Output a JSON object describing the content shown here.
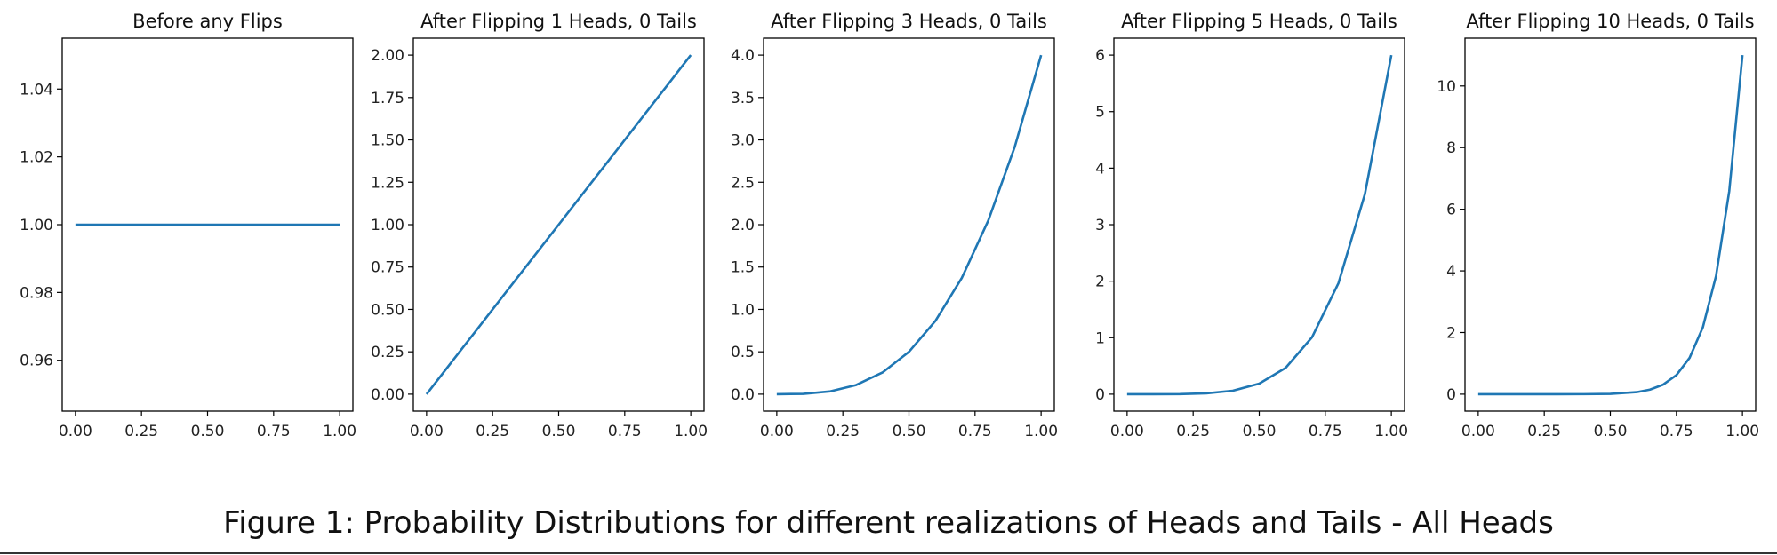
{
  "chart_data": [
    {
      "type": "line",
      "title": "Before any Flips",
      "heads": 0,
      "tails": 0,
      "xlim": [
        -0.05,
        1.05
      ],
      "ylim": [
        0.945,
        1.055
      ],
      "xticks": [
        0,
        0.25,
        0.5,
        0.75,
        1
      ],
      "xtick_labels": [
        "0.00",
        "0.25",
        "0.50",
        "0.75",
        "1.00"
      ],
      "yticks": [
        0.96,
        0.98,
        1.0,
        1.02,
        1.04
      ],
      "ytick_labels": [
        "0.96",
        "0.98",
        "1.00",
        "1.02",
        "1.04"
      ],
      "series_color": "#1f77b4",
      "x": [
        0,
        0.1,
        0.2,
        0.3,
        0.4,
        0.5,
        0.6,
        0.7,
        0.8,
        0.9,
        1.0
      ],
      "y": [
        1,
        1,
        1,
        1,
        1,
        1,
        1,
        1,
        1,
        1,
        1
      ]
    },
    {
      "type": "line",
      "title": "After Flipping 1 Heads, 0 Tails",
      "heads": 1,
      "tails": 0,
      "xlim": [
        -0.05,
        1.05
      ],
      "ylim": [
        -0.1,
        2.1
      ],
      "xticks": [
        0,
        0.25,
        0.5,
        0.75,
        1
      ],
      "xtick_labels": [
        "0.00",
        "0.25",
        "0.50",
        "0.75",
        "1.00"
      ],
      "yticks": [
        0,
        0.25,
        0.5,
        0.75,
        1.0,
        1.25,
        1.5,
        1.75,
        2.0
      ],
      "ytick_labels": [
        "0.00",
        "0.25",
        "0.50",
        "0.75",
        "1.00",
        "1.25",
        "1.50",
        "1.75",
        "2.00"
      ],
      "series_color": "#1f77b4",
      "x": [
        0,
        0.1,
        0.2,
        0.3,
        0.4,
        0.5,
        0.6,
        0.7,
        0.8,
        0.9,
        1.0
      ],
      "y": [
        0,
        0.2,
        0.4,
        0.6,
        0.8,
        1.0,
        1.2,
        1.4,
        1.6,
        1.8,
        2.0
      ]
    },
    {
      "type": "line",
      "title": "After Flipping 3 Heads, 0 Tails",
      "heads": 3,
      "tails": 0,
      "xlim": [
        -0.05,
        1.05
      ],
      "ylim": [
        -0.2,
        4.2
      ],
      "xticks": [
        0,
        0.25,
        0.5,
        0.75,
        1
      ],
      "xtick_labels": [
        "0.00",
        "0.25",
        "0.50",
        "0.75",
        "1.00"
      ],
      "yticks": [
        0,
        0.5,
        1.0,
        1.5,
        2.0,
        2.5,
        3.0,
        3.5,
        4.0
      ],
      "ytick_labels": [
        "0.0",
        "0.5",
        "1.0",
        "1.5",
        "2.0",
        "2.5",
        "3.0",
        "3.5",
        "4.0"
      ],
      "series_color": "#1f77b4",
      "x": [
        0,
        0.1,
        0.2,
        0.3,
        0.4,
        0.5,
        0.6,
        0.7,
        0.8,
        0.9,
        1.0
      ],
      "y": [
        0,
        0.004,
        0.032,
        0.108,
        0.256,
        0.5,
        0.864,
        1.372,
        2.048,
        2.916,
        4.0
      ]
    },
    {
      "type": "line",
      "title": "After Flipping 5 Heads, 0 Tails",
      "heads": 5,
      "tails": 0,
      "xlim": [
        -0.05,
        1.05
      ],
      "ylim": [
        -0.3,
        6.3
      ],
      "xticks": [
        0,
        0.25,
        0.5,
        0.75,
        1
      ],
      "xtick_labels": [
        "0.00",
        "0.25",
        "0.50",
        "0.75",
        "1.00"
      ],
      "yticks": [
        0,
        1,
        2,
        3,
        4,
        5,
        6
      ],
      "ytick_labels": [
        "0",
        "1",
        "2",
        "3",
        "4",
        "5",
        "6"
      ],
      "series_color": "#1f77b4",
      "x": [
        0,
        0.1,
        0.2,
        0.3,
        0.4,
        0.5,
        0.6,
        0.7,
        0.8,
        0.9,
        1.0
      ],
      "y": [
        0,
        6e-05,
        0.00192,
        0.01458,
        0.06144,
        0.1875,
        0.46656,
        1.00842,
        1.96608,
        3.54294,
        6.0
      ]
    },
    {
      "type": "line",
      "title": "After Flipping 10 Heads, 0 Tails",
      "heads": 10,
      "tails": 0,
      "xlim": [
        -0.05,
        1.05
      ],
      "ylim": [
        -0.55,
        11.55
      ],
      "xticks": [
        0,
        0.25,
        0.5,
        0.75,
        1
      ],
      "xtick_labels": [
        "0.00",
        "0.25",
        "0.50",
        "0.75",
        "1.00"
      ],
      "yticks": [
        0,
        2,
        4,
        6,
        8,
        10
      ],
      "ytick_labels": [
        "0",
        "2",
        "4",
        "6",
        "8",
        "10"
      ],
      "series_color": "#1f77b4",
      "x": [
        0,
        0.1,
        0.2,
        0.3,
        0.4,
        0.5,
        0.6,
        0.65,
        0.7,
        0.75,
        0.8,
        0.85,
        0.9,
        0.95,
        1.0
      ],
      "y": [
        0,
        0,
        1.1e-06,
        6.5e-05,
        0.00115,
        0.0107,
        0.0665,
        0.148,
        0.311,
        0.619,
        1.181,
        2.168,
        3.835,
        6.586,
        11.0
      ]
    }
  ],
  "caption": "Figure 1: Probability Distributions for different realizations of Heads and Tails - All Heads"
}
